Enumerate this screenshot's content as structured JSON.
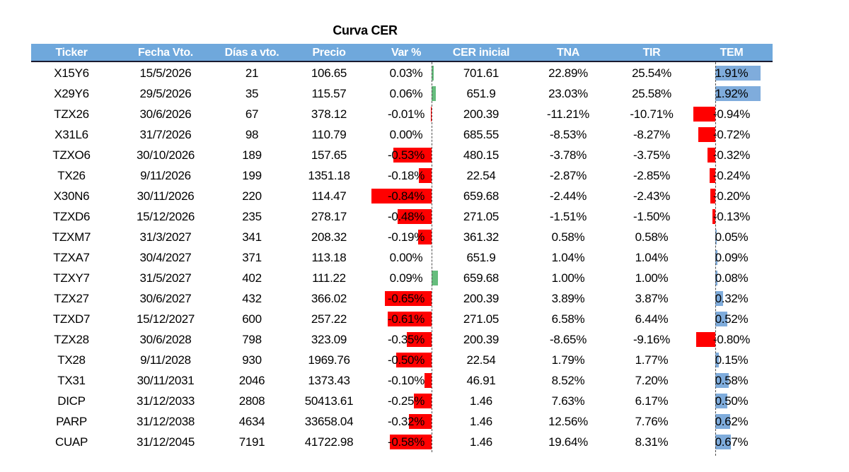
{
  "title": "Curva CER",
  "colors": {
    "header_bg": "#6FA8DC",
    "header_text": "#FFFFFF",
    "header_underline": "#1B1B2F",
    "negative_bar": "#FF0000",
    "var_positive_bar": "#66BD7D",
    "tem_positive_bar": "#7FACDC",
    "axis_line": "#4D4D4D"
  },
  "table": {
    "columns": [
      {
        "key": "ticker",
        "label": "Ticker"
      },
      {
        "key": "fecha",
        "label": "Fecha Vto."
      },
      {
        "key": "dias",
        "label": "Días a vto."
      },
      {
        "key": "precio",
        "label": "Precio"
      },
      {
        "key": "var",
        "label": "Var %"
      },
      {
        "key": "cer",
        "label": "CER inicial"
      },
      {
        "key": "tna",
        "label": "TNA"
      },
      {
        "key": "tir",
        "label": "TIR"
      },
      {
        "key": "tem",
        "label": "TEM"
      }
    ],
    "rows": [
      {
        "ticker": "X15Y6",
        "fecha": "15/5/2026",
        "dias": "21",
        "precio": "106.65",
        "var": "0.03%",
        "cer": "701.61",
        "tna": "22.89%",
        "tir": "25.54%",
        "tem": "1.91%"
      },
      {
        "ticker": "X29Y6",
        "fecha": "29/5/2026",
        "dias": "35",
        "precio": "115.57",
        "var": "0.06%",
        "cer": "651.9",
        "tna": "23.03%",
        "tir": "25.58%",
        "tem": "1.92%"
      },
      {
        "ticker": "TZX26",
        "fecha": "30/6/2026",
        "dias": "67",
        "precio": "378.12",
        "var": "-0.01%",
        "cer": "200.39",
        "tna": "-11.21%",
        "tir": "-10.71%",
        "tem": "-0.94%"
      },
      {
        "ticker": "X31L6",
        "fecha": "31/7/2026",
        "dias": "98",
        "precio": "110.79",
        "var": "0.00%",
        "cer": "685.55",
        "tna": "-8.53%",
        "tir": "-8.27%",
        "tem": "-0.72%"
      },
      {
        "ticker": "TZXO6",
        "fecha": "30/10/2026",
        "dias": "189",
        "precio": "157.65",
        "var": "-0.53%",
        "cer": "480.15",
        "tna": "-3.78%",
        "tir": "-3.75%",
        "tem": "-0.32%"
      },
      {
        "ticker": "TX26",
        "fecha": "9/11/2026",
        "dias": "199",
        "precio": "1351.18",
        "var": "-0.18%",
        "cer": "22.54",
        "tna": "-2.87%",
        "tir": "-2.85%",
        "tem": "-0.24%"
      },
      {
        "ticker": "X30N6",
        "fecha": "30/11/2026",
        "dias": "220",
        "precio": "114.47",
        "var": "-0.84%",
        "cer": "659.68",
        "tna": "-2.44%",
        "tir": "-2.43%",
        "tem": "-0.20%"
      },
      {
        "ticker": "TZXD6",
        "fecha": "15/12/2026",
        "dias": "235",
        "precio": "278.17",
        "var": "-0.48%",
        "cer": "271.05",
        "tna": "-1.51%",
        "tir": "-1.50%",
        "tem": "-0.13%"
      },
      {
        "ticker": "TZXM7",
        "fecha": "31/3/2027",
        "dias": "341",
        "precio": "208.32",
        "var": "-0.19%",
        "cer": "361.32",
        "tna": "0.58%",
        "tir": "0.58%",
        "tem": "0.05%"
      },
      {
        "ticker": "TZXA7",
        "fecha": "30/4/2027",
        "dias": "371",
        "precio": "113.18",
        "var": "0.00%",
        "cer": "651.9",
        "tna": "1.04%",
        "tir": "1.04%",
        "tem": "0.09%"
      },
      {
        "ticker": "TZXY7",
        "fecha": "31/5/2027",
        "dias": "402",
        "precio": "111.22",
        "var": "0.09%",
        "cer": "659.68",
        "tna": "1.00%",
        "tir": "1.00%",
        "tem": "0.08%"
      },
      {
        "ticker": "TZX27",
        "fecha": "30/6/2027",
        "dias": "432",
        "precio": "366.02",
        "var": "-0.65%",
        "cer": "200.39",
        "tna": "3.89%",
        "tir": "3.87%",
        "tem": "0.32%"
      },
      {
        "ticker": "TZXD7",
        "fecha": "15/12/2027",
        "dias": "600",
        "precio": "257.22",
        "var": "-0.61%",
        "cer": "271.05",
        "tna": "6.58%",
        "tir": "6.44%",
        "tem": "0.52%"
      },
      {
        "ticker": "TZX28",
        "fecha": "30/6/2028",
        "dias": "798",
        "precio": "323.09",
        "var": "-0.35%",
        "cer": "200.39",
        "tna": "-8.65%",
        "tir": "-9.16%",
        "tem": "-0.80%"
      },
      {
        "ticker": "TX28",
        "fecha": "9/11/2028",
        "dias": "930",
        "precio": "1969.76",
        "var": "-0.50%",
        "cer": "22.54",
        "tna": "1.79%",
        "tir": "1.77%",
        "tem": "0.15%"
      },
      {
        "ticker": "TX31",
        "fecha": "30/11/2031",
        "dias": "2046",
        "precio": "1373.43",
        "var": "-0.10%",
        "cer": "46.91",
        "tna": "8.52%",
        "tir": "7.20%",
        "tem": "0.58%"
      },
      {
        "ticker": "DICP",
        "fecha": "31/12/2033",
        "dias": "2808",
        "precio": "50413.61",
        "var": "-0.25%",
        "cer": "1.46",
        "tna": "7.63%",
        "tir": "6.17%",
        "tem": "0.50%"
      },
      {
        "ticker": "PARP",
        "fecha": "31/12/2038",
        "dias": "4634",
        "precio": "33658.04",
        "var": "-0.32%",
        "cer": "1.46",
        "tna": "12.56%",
        "tir": "7.76%",
        "tem": "0.62%"
      },
      {
        "ticker": "CUAP",
        "fecha": "31/12/2045",
        "dias": "7191",
        "precio": "41722.98",
        "var": "-0.58%",
        "cer": "1.46",
        "tna": "19.64%",
        "tir": "8.31%",
        "tem": "0.67%"
      }
    ]
  }
}
